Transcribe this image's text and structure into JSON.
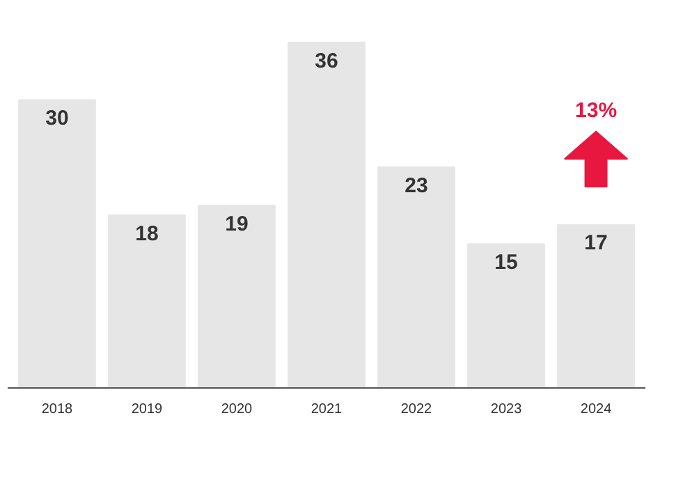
{
  "chart_data": {
    "type": "bar",
    "categories": [
      "2018",
      "2019",
      "2020",
      "2021",
      "2022",
      "2023",
      "2024"
    ],
    "values": [
      30,
      18,
      19,
      36,
      23,
      15,
      17
    ],
    "color": "#e6e6e6",
    "data_labels": true,
    "grid": false,
    "annotations": [
      "13%"
    ]
  }
}
